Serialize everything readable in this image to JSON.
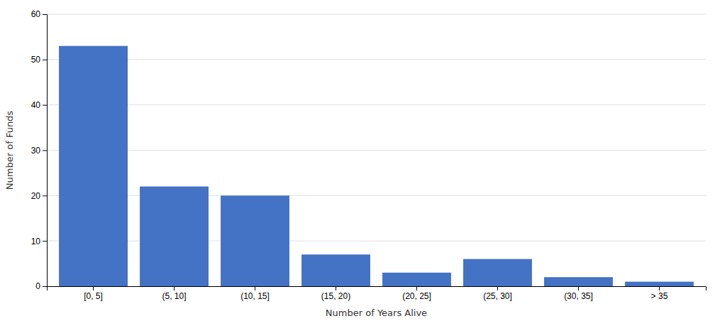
{
  "chart_data": {
    "type": "bar",
    "categories": [
      "[0, 5]",
      "(5, 10]",
      "(10, 15]",
      "(15, 20)",
      "(20, 25]",
      "(25, 30]",
      "(30, 35]",
      "> 35"
    ],
    "values": [
      53,
      22,
      20,
      7,
      3,
      6,
      2,
      1
    ],
    "color": "#4472c4",
    "xlabel": "Number of Years Alive",
    "ylabel": "Number of Funds",
    "ylim": [
      0,
      60
    ],
    "yticks": [
      0,
      10,
      20,
      30,
      40,
      50,
      60
    ],
    "grid": true
  }
}
